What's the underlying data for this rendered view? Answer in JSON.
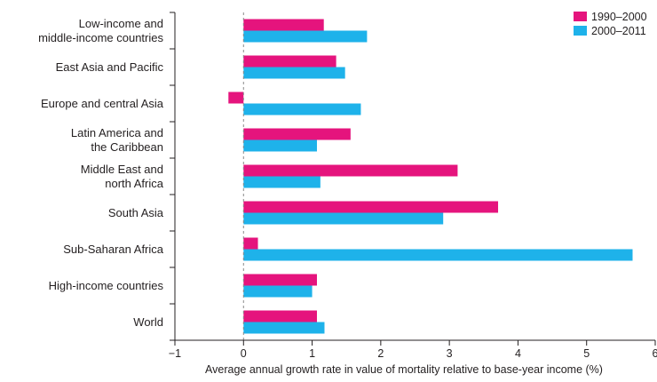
{
  "chart_data": {
    "type": "bar",
    "orientation": "horizontal",
    "categories": [
      [
        "Low-income and",
        "middle-income countries"
      ],
      [
        "East Asia and Pacific"
      ],
      [
        "Europe and central Asia"
      ],
      [
        "Latin America and",
        "the Caribbean"
      ],
      [
        "Middle East and",
        "north Africa"
      ],
      [
        "South Asia"
      ],
      [
        "Sub-Saharan Africa"
      ],
      [
        "High-income countries"
      ],
      [
        "World"
      ]
    ],
    "series": [
      {
        "name": "1990–2000",
        "color": "#e5147d",
        "values": [
          1.17,
          1.35,
          -0.22,
          1.56,
          3.12,
          3.71,
          0.21,
          1.07,
          1.07
        ]
      },
      {
        "name": "2000–2011",
        "color": "#1eb2ea",
        "values": [
          1.8,
          1.48,
          1.71,
          1.07,
          1.12,
          2.91,
          5.67,
          1.0,
          1.18
        ]
      }
    ],
    "xlabel": "Average annual growth rate in value of mortality relative to base-year income (%)",
    "ylabel": "",
    "title": "",
    "xlim": [
      -1,
      6
    ],
    "xticks": [
      "−1",
      "0",
      "1",
      "2",
      "3",
      "4",
      "5",
      "6"
    ],
    "zero_line": "dashed",
    "grid": false,
    "legend_position": "top-right"
  }
}
